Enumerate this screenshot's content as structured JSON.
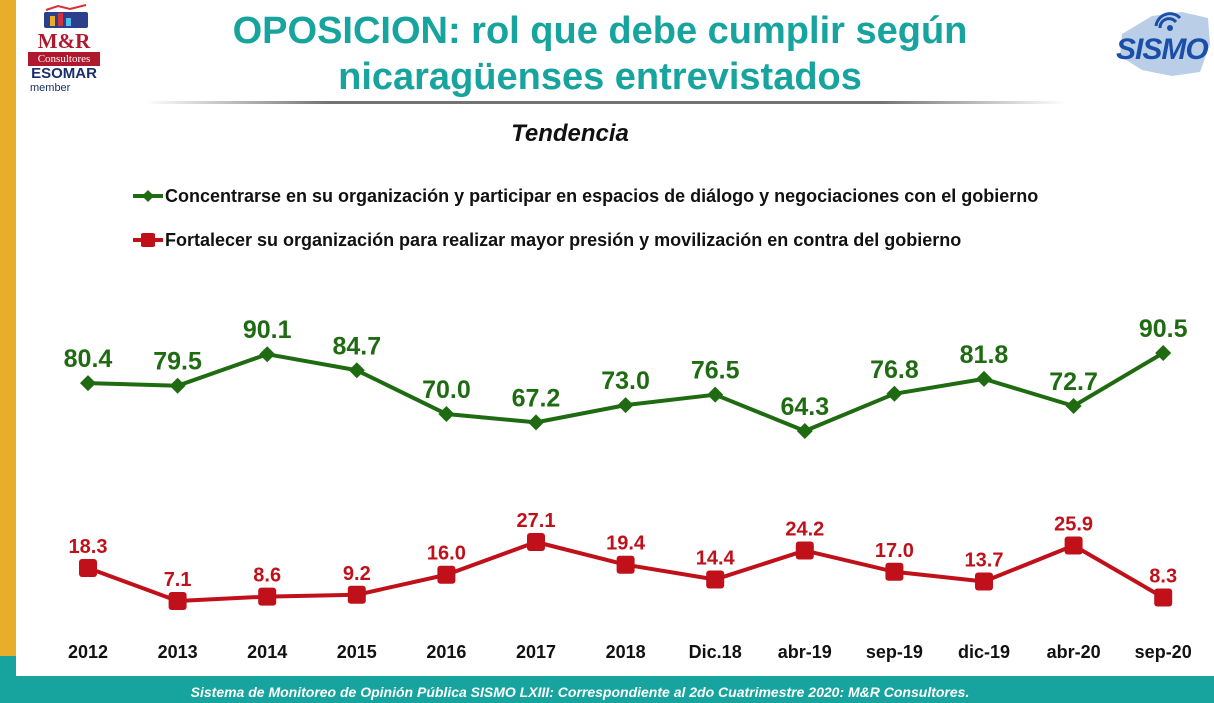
{
  "header": {
    "title_line1": "OPOSICION:  rol que debe cumplir según",
    "title_line2": "nicaragüenses entrevistados",
    "logo_left": {
      "brand": "M&R",
      "sub": "Consultores",
      "org": "ESOMAR",
      "member": "member"
    },
    "logo_right": {
      "brand": "SISMO"
    }
  },
  "footer": {
    "text": "Sistema de Monitoreo de Opinión Pública SISMO LXIII: Correspondiente al 2do Cuatrimestre 2020: M&R Consultores."
  },
  "colors": {
    "accent": "#17a39e",
    "left_bar": "#e8ae2a",
    "series_green": "#1f6b12",
    "series_red": "#c0111b"
  },
  "chart_data": {
    "type": "line",
    "title": "Tendencia",
    "categories": [
      "2012",
      "2013",
      "2014",
      "2015",
      "2016",
      "2017",
      "2018",
      "Dic.18",
      "abr-19",
      "sep-19",
      "dic-19",
      "abr-20",
      "sep-20"
    ],
    "series": [
      {
        "name": "Concentrarse en su organización y participar en espacios de diálogo y negociaciones con el gobierno",
        "color": "#1f6b12",
        "marker": "diamond",
        "values": [
          80.4,
          79.5,
          90.1,
          84.7,
          70.0,
          67.2,
          73.0,
          76.5,
          64.3,
          76.8,
          81.8,
          72.7,
          90.5
        ],
        "labels": [
          "80.4",
          "79.5",
          "90.1",
          "84.7",
          "70.0",
          "67.2",
          "73.0",
          "76.5",
          "64.3",
          "76.8",
          "81.8",
          "72.7",
          "90.5"
        ]
      },
      {
        "name": "Fortalecer su organización para realizar mayor presión y movilización en contra del gobierno",
        "color": "#c0111b",
        "marker": "square",
        "values": [
          18.3,
          7.1,
          8.6,
          9.2,
          16.0,
          27.1,
          19.4,
          14.4,
          24.2,
          17.0,
          13.7,
          25.9,
          8.3
        ],
        "labels": [
          "18.3",
          "7.1",
          "8.6",
          "9.2",
          "16.0",
          "27.1",
          "19.4",
          "14.4",
          "24.2",
          "17.0",
          "13.7",
          "25.9",
          "8.3"
        ]
      }
    ],
    "legend": "top-left",
    "grid": false
  }
}
